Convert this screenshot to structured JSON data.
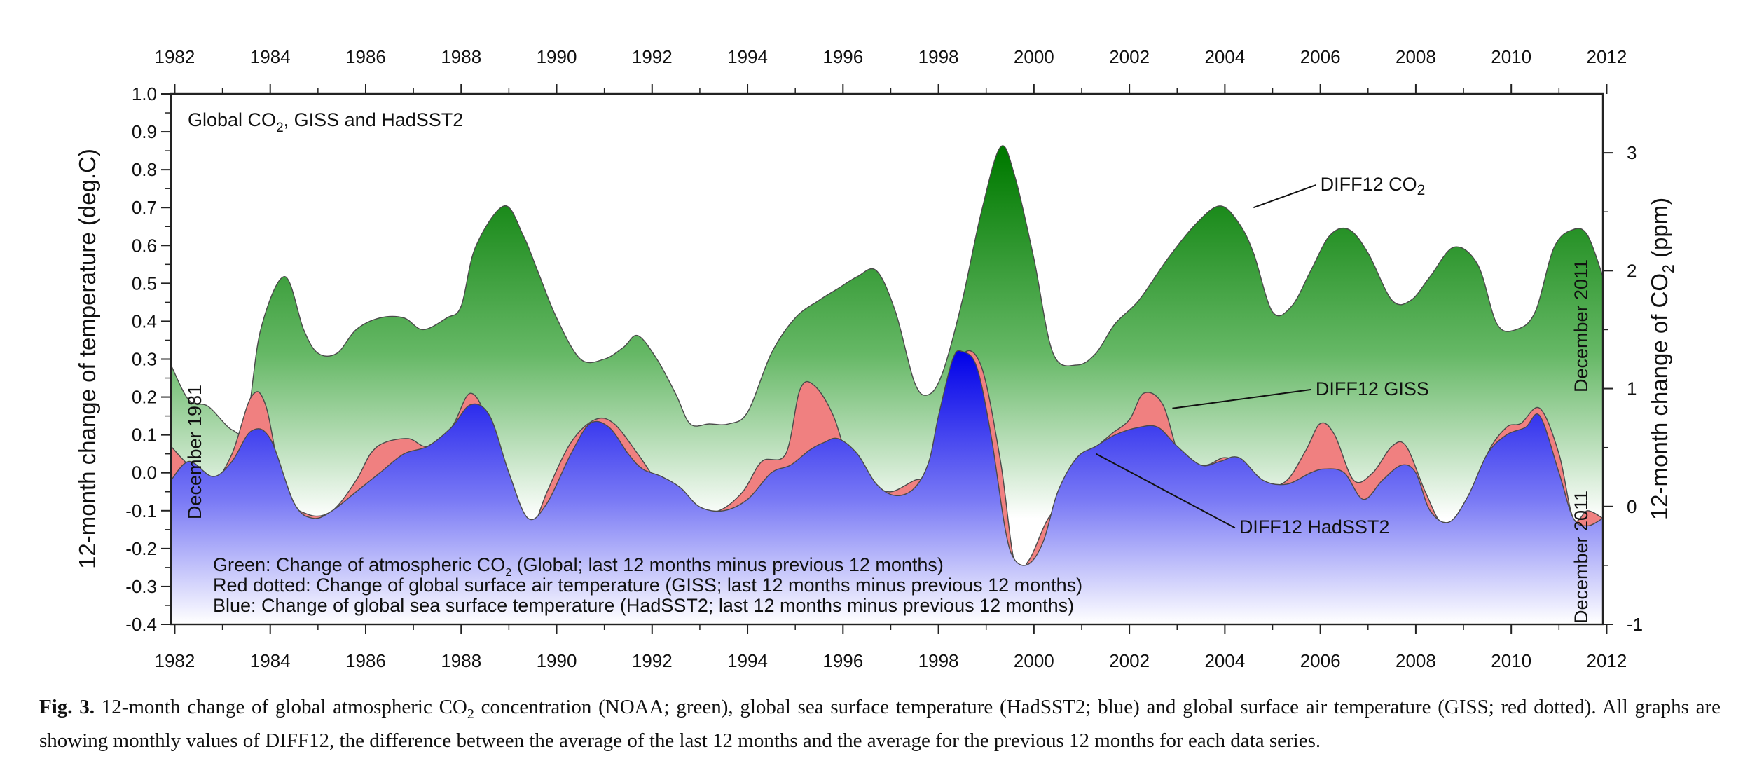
{
  "chart_data": {
    "type": "area",
    "panel_title": {
      "prefix": "Global CO",
      "sub": "2",
      "suffix": ", GISS and HadSST2"
    },
    "x_range": [
      1981.92,
      2011.92
    ],
    "x_ticks": [
      1982,
      1984,
      1986,
      1988,
      1990,
      1992,
      1994,
      1996,
      1998,
      2000,
      2002,
      2004,
      2006,
      2008,
      2010,
      2012
    ],
    "x_tick_labels": [
      "1982",
      "1984",
      "1986",
      "1988",
      "1990",
      "1992",
      "1994",
      "1996",
      "1998",
      "2000",
      "2002",
      "2004",
      "2006",
      "2008",
      "2010",
      "2012"
    ],
    "y_left": {
      "label": "12-month change of temperature (deg.C)",
      "range": [
        -0.4,
        1.0
      ],
      "ticks": [
        1.0,
        0.9,
        0.8,
        0.7,
        0.6,
        0.5,
        0.4,
        0.3,
        0.2,
        0.1,
        0.0,
        -0.1,
        -0.2,
        -0.3,
        -0.4
      ],
      "tick_labels": [
        "1.0",
        "0.9",
        "0.8",
        "0.7",
        "0.6",
        "0.5",
        "0.4",
        "0.3",
        "0.2",
        "0.1",
        "0.0",
        "-0.1",
        "-0.2",
        "-0.3",
        "-0.4"
      ]
    },
    "y_right": {
      "label_prefix": "12-month change of CO",
      "label_sub": "2",
      "label_suffix": " (ppm)",
      "range": [
        -1,
        3.5
      ],
      "ticks": [
        3,
        2,
        1,
        0,
        -1
      ],
      "tick_labels": [
        "3",
        "2",
        "1",
        "0",
        "-1"
      ]
    },
    "edge_labels": {
      "left": "December 1981",
      "right_top": "December 2011",
      "right_bottom": "December 2011"
    },
    "series": [
      {
        "name": "DIFF12 CO2",
        "axis": "right",
        "color": "#1a8a1a",
        "x": [
          1981.92,
          1982.3,
          1982.7,
          1983.2,
          1983.5,
          1983.8,
          1984.3,
          1984.7,
          1985.0,
          1985.4,
          1985.8,
          1986.3,
          1986.8,
          1987.2,
          1987.7,
          1988.0,
          1988.3,
          1988.9,
          1989.3,
          1989.6,
          1990.0,
          1990.5,
          1991.0,
          1991.4,
          1991.7,
          1992.1,
          1992.5,
          1992.8,
          1993.2,
          1993.6,
          1994.0,
          1994.5,
          1995.0,
          1995.5,
          1995.9,
          1996.3,
          1996.7,
          1997.1,
          1997.5,
          1997.8,
          1998.1,
          1998.5,
          1998.9,
          1999.3,
          1999.6,
          2000.0,
          2000.4,
          2000.9,
          2001.3,
          2001.7,
          2002.2,
          2002.8,
          2003.4,
          2003.9,
          2004.3,
          2004.6,
          2005.0,
          2005.4,
          2005.8,
          2006.2,
          2006.6,
          2007.0,
          2007.5,
          2007.9,
          2008.3,
          2008.8,
          2009.3,
          2009.7,
          2010.1,
          2010.5,
          2010.9,
          2011.3,
          2011.6,
          2011.92
        ],
        "values": [
          1.2,
          0.9,
          0.85,
          0.65,
          0.7,
          1.5,
          1.95,
          1.5,
          1.3,
          1.3,
          1.5,
          1.6,
          1.6,
          1.5,
          1.6,
          1.7,
          2.2,
          2.55,
          2.3,
          2.0,
          1.6,
          1.25,
          1.25,
          1.35,
          1.45,
          1.25,
          0.95,
          0.7,
          0.7,
          0.7,
          0.8,
          1.3,
          1.6,
          1.75,
          1.85,
          1.95,
          2.0,
          1.65,
          1.05,
          0.95,
          1.15,
          1.75,
          2.5,
          3.05,
          2.8,
          2.1,
          1.3,
          1.2,
          1.3,
          1.55,
          1.75,
          2.1,
          2.4,
          2.55,
          2.4,
          2.15,
          1.65,
          1.7,
          2.0,
          2.3,
          2.35,
          2.15,
          1.75,
          1.75,
          1.95,
          2.2,
          2.05,
          1.55,
          1.5,
          1.65,
          2.2,
          2.35,
          2.3,
          1.95
        ]
      },
      {
        "name": "DIFF12 GISS",
        "axis": "left",
        "color": "#f08080",
        "x": [
          1981.92,
          1982.3,
          1982.8,
          1983.2,
          1983.6,
          1983.9,
          1984.3,
          1984.8,
          1985.3,
          1985.8,
          1986.1,
          1986.4,
          1986.9,
          1987.3,
          1987.8,
          1988.2,
          1988.6,
          1989.1,
          1989.4,
          1989.8,
          1990.3,
          1990.8,
          1991.2,
          1991.7,
          1992.1,
          1992.5,
          1992.9,
          1993.4,
          1993.9,
          1994.3,
          1994.8,
          1995.1,
          1995.4,
          1995.8,
          1996.2,
          1996.6,
          1997.0,
          1997.5,
          1997.9,
          1998.2,
          1998.5,
          1998.9,
          1999.3,
          1999.6,
          1999.9,
          2000.3,
          2000.8,
          2001.2,
          2001.6,
          2002.0,
          2002.3,
          2002.7,
          2003.1,
          2003.6,
          2004.0,
          2004.4,
          2004.9,
          2005.3,
          2005.7,
          2006.0,
          2006.3,
          2006.7,
          2007.1,
          2007.5,
          2007.8,
          2008.2,
          2008.6,
          2009.1,
          2009.5,
          2009.9,
          2010.2,
          2010.6,
          2011.0,
          2011.3,
          2011.6,
          2011.92
        ],
        "values": [
          0.07,
          0.02,
          -0.02,
          0.05,
          0.2,
          0.18,
          -0.05,
          -0.11,
          -0.1,
          -0.02,
          0.05,
          0.08,
          0.09,
          0.07,
          0.12,
          0.21,
          0.12,
          -0.1,
          -0.17,
          -0.05,
          0.08,
          0.14,
          0.13,
          0.05,
          -0.02,
          -0.05,
          -0.1,
          -0.1,
          -0.05,
          0.03,
          0.05,
          0.22,
          0.23,
          0.15,
          0.0,
          -0.03,
          -0.05,
          -0.02,
          0.0,
          0.15,
          0.31,
          0.28,
          0.03,
          -0.24,
          -0.23,
          -0.12,
          -0.05,
          0.05,
          0.1,
          0.14,
          0.21,
          0.18,
          0.03,
          0.02,
          0.04,
          0.02,
          -0.03,
          -0.02,
          0.06,
          0.13,
          0.1,
          -0.02,
          0.0,
          0.07,
          0.07,
          -0.05,
          -0.14,
          -0.1,
          0.05,
          0.12,
          0.13,
          0.17,
          0.05,
          -0.12,
          -0.1,
          -0.12
        ]
      },
      {
        "name": "DIFF12 HadSST2",
        "axis": "left",
        "color": "#1f1ff0",
        "x": [
          1981.92,
          1982.3,
          1982.8,
          1983.2,
          1983.6,
          1984.0,
          1984.5,
          1984.9,
          1985.3,
          1985.8,
          1986.3,
          1986.8,
          1987.3,
          1987.8,
          1988.2,
          1988.6,
          1989.0,
          1989.4,
          1989.8,
          1990.3,
          1990.7,
          1991.1,
          1991.5,
          1991.8,
          1992.2,
          1992.6,
          1993.0,
          1993.5,
          1994.0,
          1994.5,
          1994.9,
          1995.3,
          1995.6,
          1995.9,
          1996.3,
          1996.7,
          1997.1,
          1997.5,
          1997.8,
          1998.0,
          1998.3,
          1998.5,
          1998.8,
          1999.1,
          1999.4,
          1999.6,
          1999.9,
          2000.2,
          2000.5,
          2000.9,
          2001.3,
          2001.7,
          2002.2,
          2002.6,
          2003.0,
          2003.5,
          2003.9,
          2004.3,
          2004.8,
          2005.3,
          2005.8,
          2006.1,
          2006.5,
          2006.9,
          2007.3,
          2007.7,
          2008.0,
          2008.3,
          2008.7,
          2009.1,
          2009.5,
          2009.9,
          2010.3,
          2010.6,
          2011.0,
          2011.3,
          2011.6,
          2011.92
        ],
        "values": [
          -0.02,
          0.03,
          -0.01,
          0.03,
          0.11,
          0.09,
          -0.08,
          -0.12,
          -0.1,
          -0.05,
          0.0,
          0.05,
          0.07,
          0.12,
          0.18,
          0.15,
          0.0,
          -0.12,
          -0.08,
          0.05,
          0.13,
          0.12,
          0.05,
          0.01,
          -0.01,
          -0.04,
          -0.09,
          -0.1,
          -0.07,
          0.0,
          0.02,
          0.06,
          0.08,
          0.09,
          0.05,
          -0.03,
          -0.06,
          -0.04,
          0.03,
          0.15,
          0.3,
          0.32,
          0.28,
          0.1,
          -0.15,
          -0.23,
          -0.24,
          -0.18,
          -0.05,
          0.04,
          0.07,
          0.1,
          0.12,
          0.12,
          0.07,
          0.02,
          0.03,
          0.04,
          -0.02,
          -0.03,
          0.0,
          0.01,
          0.0,
          -0.07,
          -0.02,
          0.02,
          0.0,
          -0.1,
          -0.13,
          -0.06,
          0.05,
          0.1,
          0.12,
          0.15,
          0.0,
          -0.12,
          -0.14,
          -0.12
        ]
      }
    ],
    "series_labels": [
      {
        "text": "DIFF12 CO",
        "sub": "2",
        "x": 2006.0,
        "y": 0.745,
        "anchor_x": 2004.6,
        "anchor_y": 0.7
      },
      {
        "text": "DIFF12 GISS",
        "x": 2005.9,
        "y": 0.205,
        "anchor_x": 2002.9,
        "anchor_y": 0.17
      },
      {
        "text": "DIFF12 HadSST2",
        "x": 2004.3,
        "y": -0.16,
        "anchor_x": 2001.3,
        "anchor_y": 0.05
      }
    ],
    "legend": {
      "position": "bottom-left",
      "lines": [
        {
          "prefix": "Green: Change of atmospheric CO",
          "sub": "2",
          "suffix": " (Global; last 12 months minus previous 12 months)"
        },
        {
          "prefix": "Red dotted: Change of global surface air temperature (GISS; last 12 months minus previous 12 months)",
          "sub": "",
          "suffix": ""
        },
        {
          "prefix": "Blue: Change of global sea surface temperature (HadSST2; last 12 months minus previous 12 months)",
          "sub": "",
          "suffix": ""
        }
      ]
    }
  },
  "caption": {
    "label": "Fig. 3.",
    "text_1": " 12-month change of global atmospheric CO",
    "sub": "2",
    "text_2": " concentration (NOAA; green), global sea surface temperature (HadSST2; blue) and global surface air temperature (GISS; red dotted). All graphs are showing monthly values of DIFF12, the difference between the average of the last 12 months and the average for the previous 12 months for each data series."
  }
}
